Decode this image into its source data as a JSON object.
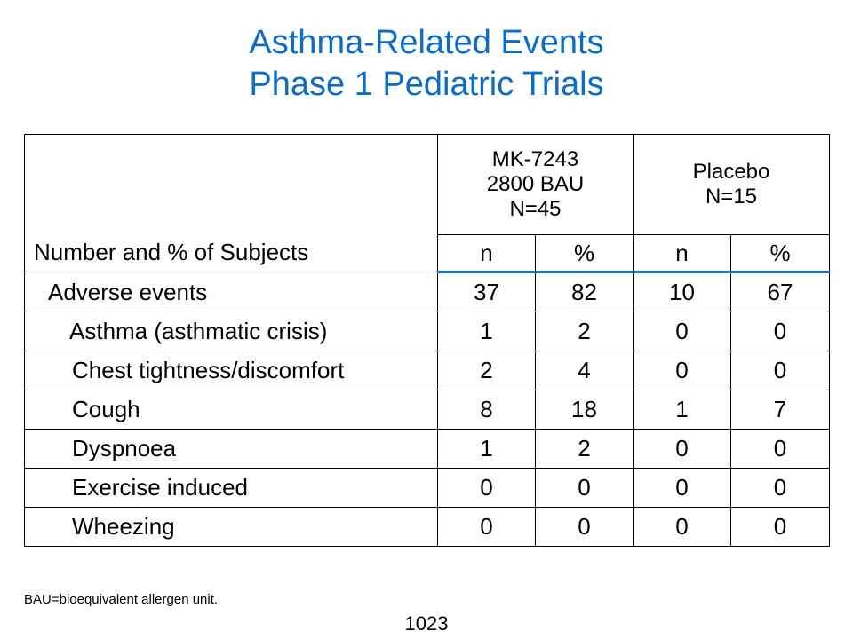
{
  "title": {
    "line1": "Asthma-Related Events",
    "line2": "Phase 1 Pediatric Trials"
  },
  "table": {
    "row_header": "Number and % of Subjects",
    "groups": [
      {
        "line1": "MK-7243",
        "line2": "2800 BAU",
        "line3": "N=45"
      },
      {
        "line1": "Placebo",
        "line2": "N=15"
      }
    ],
    "subheaders": [
      "n",
      "%",
      "n",
      "%"
    ],
    "rows": [
      {
        "label": "Adverse events",
        "values": [
          "37",
          "82",
          "10",
          "67"
        ]
      },
      {
        "label": "Asthma (asthmatic crisis)",
        "values": [
          "1",
          "2",
          "0",
          "0"
        ]
      },
      {
        "label": "Chest tightness/discomfort",
        "values": [
          "2",
          "4",
          "0",
          "0"
        ]
      },
      {
        "label": "Cough",
        "values": [
          "8",
          "18",
          "1",
          "7"
        ]
      },
      {
        "label": "Dyspnoea",
        "values": [
          "1",
          "2",
          "0",
          "0"
        ]
      },
      {
        "label": "Exercise induced",
        "values": [
          "0",
          "0",
          "0",
          "0"
        ]
      },
      {
        "label": "Wheezing",
        "values": [
          "0",
          "0",
          "0",
          "0"
        ]
      }
    ]
  },
  "footnote": "BAU=bioequivalent allergen unit.",
  "page_number": "1023",
  "colors": {
    "title": "#0b6cc9",
    "header_rule": "#1e73c8"
  }
}
